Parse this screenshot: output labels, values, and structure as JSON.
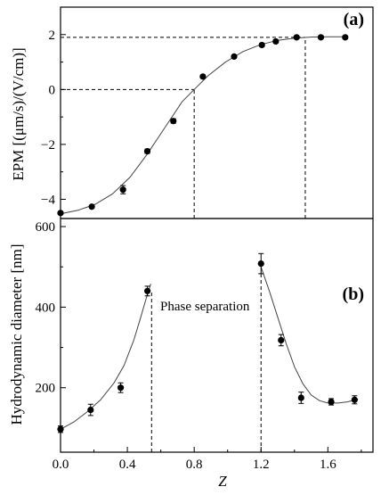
{
  "chart_data": [
    {
      "type": "scatter",
      "panel_label": "(a)",
      "ylabel": "EPM   [(μm/s)/(V/cm)]",
      "ylim": [
        -4.7,
        3.0
      ],
      "xlim": [
        0.0,
        1.8
      ],
      "yticks": [
        -4,
        -2,
        0,
        2
      ],
      "ytick_labels": [
        "−4",
        "−2",
        "0",
        "2"
      ],
      "grid": false,
      "series": [
        {
          "x": [
            0.0,
            0.18,
            0.36,
            0.5,
            0.65,
            0.82,
            1.0,
            1.16,
            1.24,
            1.36,
            1.5,
            1.64
          ],
          "y": [
            -4.5,
            -4.27,
            -3.65,
            -2.25,
            -1.15,
            0.47,
            1.2,
            1.62,
            1.75,
            1.9,
            1.9,
            1.9
          ],
          "yerr": [
            0.05,
            0.05,
            0.15,
            0.08,
            0.08,
            0.06,
            0.06,
            0.06,
            0.05,
            0.05,
            0.04,
            0.05
          ]
        }
      ],
      "fit_curve": {
        "x": [
          0.0,
          0.1,
          0.2,
          0.3,
          0.4,
          0.5,
          0.6,
          0.7,
          0.77,
          0.85,
          0.95,
          1.05,
          1.15,
          1.25,
          1.35,
          1.45,
          1.55,
          1.64
        ],
        "y": [
          -4.53,
          -4.4,
          -4.18,
          -3.8,
          -3.2,
          -2.35,
          -1.4,
          -0.45,
          0.0,
          0.5,
          1.0,
          1.38,
          1.63,
          1.79,
          1.87,
          1.91,
          1.92,
          1.92
        ]
      },
      "guides": [
        {
          "kind": "horizontal",
          "y": 0,
          "x_to": 0.77
        },
        {
          "kind": "vertical",
          "x": 0.77,
          "y_to": 0
        },
        {
          "kind": "horizontal",
          "y": 1.9,
          "x_to": 1.41
        },
        {
          "kind": "vertical",
          "x": 1.41,
          "y_to": 1.9
        }
      ]
    },
    {
      "type": "scatter",
      "panel_label": "(b)",
      "ylabel": "Hydrodynamic diameter [nm]",
      "xlabel": "Z",
      "ylim": [
        40,
        620
      ],
      "xlim": [
        0.0,
        1.87
      ],
      "yticks": [
        200,
        400,
        600
      ],
      "ytick_labels": [
        "200",
        "400",
        "600"
      ],
      "xticks": [
        0.0,
        0.4,
        0.8,
        1.2,
        1.6
      ],
      "xtick_labels": [
        "0.0",
        "0.4",
        "0.8",
        "1.2",
        "1.6"
      ],
      "grid": false,
      "annotation": "Phase separation",
      "series": [
        {
          "x": [
            0.0,
            0.18,
            0.36,
            0.52,
            1.2,
            1.32,
            1.44,
            1.62,
            1.76
          ],
          "y": [
            97,
            145,
            200,
            440,
            508,
            318,
            175,
            165,
            170
          ],
          "yerr": [
            8,
            14,
            12,
            12,
            25,
            14,
            14,
            8,
            10
          ]
        }
      ],
      "fit_curves": [
        {
          "x": [
            0.0,
            0.08,
            0.16,
            0.24,
            0.32,
            0.38,
            0.44,
            0.48,
            0.52,
            0.54
          ],
          "y": [
            97,
            115,
            140,
            170,
            212,
            255,
            320,
            375,
            432,
            458
          ]
        },
        {
          "x": [
            1.2,
            1.25,
            1.3,
            1.35,
            1.4,
            1.45,
            1.5,
            1.55,
            1.6,
            1.66,
            1.72,
            1.78
          ],
          "y": [
            500,
            440,
            375,
            310,
            252,
            210,
            182,
            168,
            162,
            162,
            165,
            172
          ]
        }
      ],
      "guides": [
        {
          "kind": "vertical",
          "x": 0.545,
          "y_from": 40,
          "y_to": 440
        },
        {
          "kind": "vertical",
          "x": 1.2,
          "y_from": 40,
          "y_to": 490
        }
      ]
    }
  ]
}
